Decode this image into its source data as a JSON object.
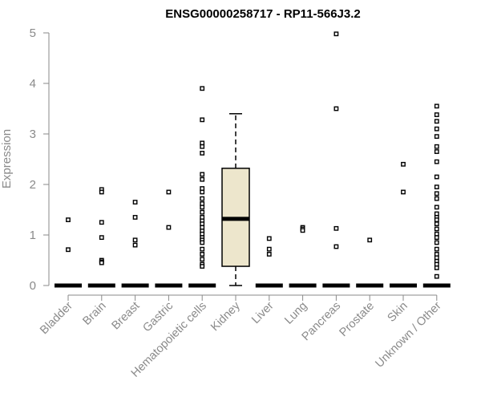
{
  "chart_data": {
    "type": "boxplot",
    "title": "ENSG00000258717 - RP11-566J3.2",
    "xlabel": "",
    "ylabel": "Expression",
    "ylim": [
      0,
      5
    ],
    "yticks": [
      0,
      1,
      2,
      3,
      4,
      5
    ],
    "grid": false,
    "colors": {
      "box_fill": "#ede6cc",
      "stroke": "#000000",
      "axis": "#8a8a8a"
    },
    "categories": [
      "Bladder",
      "Brain",
      "Breast",
      "Gastric",
      "Hematopoietic cells",
      "Kidney",
      "Liver",
      "Lung",
      "Pancreas",
      "Prostate",
      "Skin",
      "Unknown / Other"
    ],
    "boxes": [
      {
        "category": "Bladder",
        "q1": 0,
        "median": 0,
        "q3": 0,
        "whisker_low": 0,
        "whisker_high": 0,
        "outliers": [
          1.3,
          0.71
        ]
      },
      {
        "category": "Brain",
        "q1": 0,
        "median": 0,
        "q3": 0,
        "whisker_low": 0,
        "whisker_high": 0,
        "outliers": [
          1.9,
          1.85,
          1.25,
          0.95,
          0.5,
          0.47,
          0.45
        ]
      },
      {
        "category": "Breast",
        "q1": 0,
        "median": 0,
        "q3": 0,
        "whisker_low": 0,
        "whisker_high": 0,
        "outliers": [
          1.65,
          1.35,
          0.9,
          0.8
        ]
      },
      {
        "category": "Gastric",
        "q1": 0,
        "median": 0,
        "q3": 0,
        "whisker_low": 0,
        "whisker_high": 0,
        "outliers": [
          1.85,
          1.15
        ]
      },
      {
        "category": "Hematopoietic cells",
        "q1": 0,
        "median": 0,
        "q3": 0,
        "whisker_low": 0,
        "whisker_high": 0,
        "outliers": [
          3.9,
          3.28,
          2.82,
          2.75,
          2.62,
          2.2,
          2.1,
          1.92,
          1.85,
          1.72,
          1.62,
          1.55,
          1.45,
          1.35,
          1.28,
          1.22,
          1.15,
          1.08,
          1.02,
          0.95,
          0.9,
          0.85,
          0.72,
          0.62,
          0.52,
          0.42,
          0.38
        ]
      },
      {
        "category": "Kidney",
        "q1": 0.38,
        "median": 1.32,
        "q3": 2.32,
        "whisker_low": 0,
        "whisker_high": 3.4,
        "outliers": []
      },
      {
        "category": "Liver",
        "q1": 0,
        "median": 0,
        "q3": 0,
        "whisker_low": 0,
        "whisker_high": 0,
        "outliers": [
          0.93,
          0.72,
          0.62
        ]
      },
      {
        "category": "Lung",
        "q1": 0,
        "median": 0,
        "q3": 0,
        "whisker_low": 0,
        "whisker_high": 0,
        "outliers": [
          1.15,
          1.12,
          1.09
        ]
      },
      {
        "category": "Pancreas",
        "q1": 0,
        "median": 0,
        "q3": 0,
        "whisker_low": 0,
        "whisker_high": 0,
        "outliers": [
          4.98,
          3.5,
          1.13,
          0.77
        ]
      },
      {
        "category": "Prostate",
        "q1": 0,
        "median": 0,
        "q3": 0,
        "whisker_low": 0,
        "whisker_high": 0,
        "outliers": [
          0.9
        ]
      },
      {
        "category": "Skin",
        "q1": 0,
        "median": 0,
        "q3": 0,
        "whisker_low": 0,
        "whisker_high": 0,
        "outliers": [
          2.4,
          1.85
        ]
      },
      {
        "category": "Unknown / Other",
        "q1": 0,
        "median": 0,
        "q3": 0,
        "whisker_low": 0,
        "whisker_high": 0,
        "outliers": [
          3.55,
          3.38,
          3.25,
          3.1,
          2.95,
          2.75,
          2.65,
          2.45,
          2.15,
          1.95,
          1.82,
          1.72,
          1.55,
          1.42,
          1.35,
          1.3,
          1.22,
          1.12,
          1.02,
          0.95,
          0.85,
          0.72,
          0.62,
          0.55,
          0.48,
          0.42,
          0.35,
          0.18
        ]
      }
    ]
  }
}
